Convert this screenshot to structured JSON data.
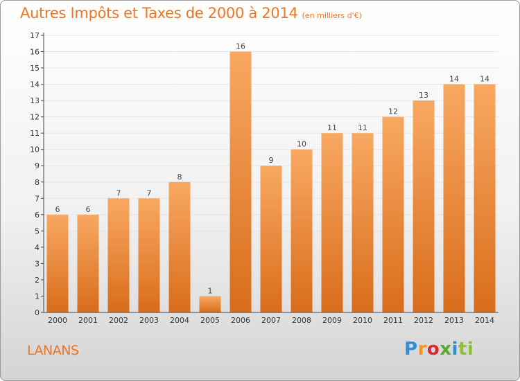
{
  "page": {
    "title": "Autres Impôts et Taxes de 2000 à 2014",
    "subtitle": "(en milliers d'€)",
    "commune": "LANANS",
    "brand": [
      "P",
      "r",
      "o",
      "x",
      "i",
      "ti"
    ]
  },
  "colors": {
    "accent": "#ee7523",
    "bar_top": "#f8a862",
    "bar_bottom": "#d96d1b"
  },
  "chart_data": {
    "type": "bar",
    "title": "Autres Impôts et Taxes de 2000 à 2014",
    "subtitle": "(en milliers d'€)",
    "xlabel": "",
    "ylabel": "",
    "categories": [
      "2000",
      "2001",
      "2002",
      "2003",
      "2004",
      "2005",
      "2006",
      "2007",
      "2008",
      "2009",
      "2010",
      "2011",
      "2012",
      "2013",
      "2014"
    ],
    "values": [
      6,
      6,
      7,
      7,
      8,
      1,
      16,
      9,
      10,
      11,
      11,
      12,
      13,
      14,
      14
    ],
    "ylim": [
      0,
      17
    ],
    "yticks": [
      0,
      1,
      2,
      3,
      4,
      5,
      6,
      7,
      8,
      9,
      10,
      11,
      12,
      13,
      14,
      15,
      16,
      17
    ],
    "grid": true,
    "legend": "none"
  }
}
